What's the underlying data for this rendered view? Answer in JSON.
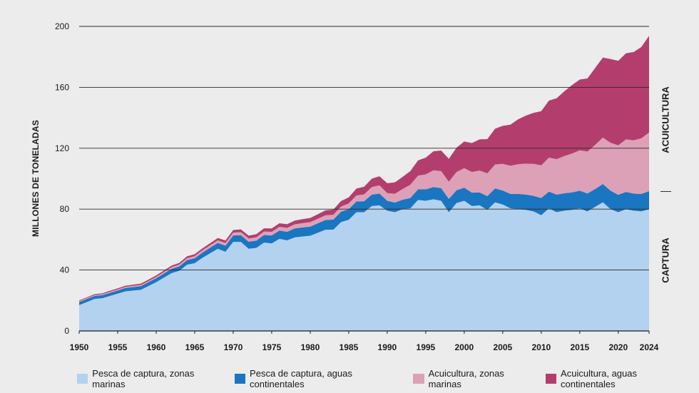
{
  "chart_data": {
    "type": "area",
    "stacked": true,
    "ylabel": "MILLONES DE TONELADAS",
    "ylim": [
      0,
      200
    ],
    "yticks": [
      0,
      40,
      80,
      120,
      160,
      200
    ],
    "xlim": [
      1950,
      2024
    ],
    "xticks": [
      1950,
      1955,
      1960,
      1965,
      1970,
      1975,
      1980,
      1985,
      1990,
      1995,
      2000,
      2005,
      2010,
      2015,
      2020,
      2024
    ],
    "grid": "horizontal",
    "legend_position": "bottom",
    "side_labels": {
      "upper": "ACUICULTURA",
      "lower": "CAPTURA"
    },
    "x": [
      1950,
      1951,
      1952,
      1953,
      1954,
      1955,
      1956,
      1957,
      1958,
      1959,
      1960,
      1961,
      1962,
      1963,
      1964,
      1965,
      1966,
      1967,
      1968,
      1969,
      1970,
      1971,
      1972,
      1973,
      1974,
      1975,
      1976,
      1977,
      1978,
      1979,
      1980,
      1981,
      1982,
      1983,
      1984,
      1985,
      1986,
      1987,
      1988,
      1989,
      1990,
      1991,
      1992,
      1993,
      1994,
      1995,
      1996,
      1997,
      1998,
      1999,
      2000,
      2001,
      2002,
      2003,
      2004,
      2005,
      2006,
      2007,
      2008,
      2009,
      2010,
      2011,
      2012,
      2013,
      2014,
      2015,
      2016,
      2017,
      2018,
      2019,
      2020,
      2021,
      2022,
      2023,
      2024
    ],
    "series": [
      {
        "name": "Pesca de captura, zonas marinas",
        "color": "#b3d2ef",
        "values": [
          17,
          19,
          21,
          21.5,
          23,
          24.5,
          26,
          26.5,
          27,
          29.5,
          32,
          35,
          38,
          39.5,
          43.5,
          44.5,
          48,
          51,
          54,
          52,
          58.5,
          58.5,
          54,
          54.5,
          58,
          57.5,
          60.5,
          59.5,
          61.5,
          62,
          62.5,
          64.5,
          66.5,
          66.5,
          71.5,
          73,
          78,
          78,
          82,
          82.5,
          79,
          78,
          80,
          80.5,
          86,
          85.5,
          86.5,
          85.5,
          78,
          84,
          85.5,
          82,
          82.5,
          79.5,
          84.5,
          83,
          80.5,
          80,
          79.5,
          78.5,
          76,
          80.5,
          78,
          79,
          79.5,
          80.5,
          78.5,
          81.5,
          84.5,
          80,
          78,
          80,
          79,
          78.5,
          80
        ]
      },
      {
        "name": "Pesca de captura, aguas continentales",
        "color": "#1a76c1",
        "values": [
          2,
          2,
          2,
          2,
          2,
          2.1,
          2.2,
          2.3,
          2.4,
          2.5,
          2.6,
          2.7,
          2.8,
          2.9,
          3,
          3.2,
          3.4,
          3.6,
          3.8,
          4,
          4.2,
          4.4,
          4.6,
          4.8,
          5,
          5.2,
          5.4,
          5.6,
          5.8,
          6,
          6,
          6.2,
          6.4,
          6.6,
          6.8,
          7,
          7,
          7.2,
          7.5,
          7.7,
          6.5,
          6.3,
          6.2,
          6.8,
          7,
          7.5,
          8,
          8.3,
          8.7,
          8.4,
          8.6,
          8.8,
          8.5,
          9,
          9.1,
          9.2,
          9.5,
          10,
          10.1,
          10.2,
          11.3,
          11,
          11.5,
          11.4,
          11.5,
          11.6,
          11.8,
          11.7,
          12,
          12.1,
          11.4,
          11.3,
          11.2,
          11.5,
          11.8
        ]
      },
      {
        "name": "Acuicultura, zonas marinas",
        "color": "#dca1b6",
        "values": [
          0.6,
          0.6,
          0.6,
          0.6,
          0.7,
          0.7,
          0.7,
          0.8,
          0.8,
          0.8,
          0.9,
          1,
          1.1,
          1.2,
          1.3,
          1.4,
          1.5,
          1.6,
          1.7,
          1.8,
          1.9,
          2,
          2.1,
          2.2,
          2.3,
          2.4,
          2.5,
          2.6,
          2.7,
          2.8,
          2.9,
          3,
          3.1,
          3.2,
          3.4,
          3.7,
          4,
          4.5,
          5,
          5.4,
          5,
          5.8,
          7,
          8.7,
          9,
          9.8,
          11,
          11.2,
          11.3,
          12,
          12.8,
          13.6,
          14.3,
          15,
          15.7,
          17.5,
          18.5,
          19.5,
          20.3,
          21,
          21.5,
          22.3,
          23.3,
          24.5,
          25.5,
          26.5,
          27.5,
          29,
          30.5,
          31.5,
          32.5,
          34.5,
          35,
          36.5,
          38.5
        ]
      },
      {
        "name": "Acuicultura, aguas continentales",
        "color": "#b33e6e",
        "values": [
          0.5,
          0.5,
          0.6,
          0.6,
          0.7,
          0.7,
          0.8,
          0.8,
          0.9,
          0.9,
          1,
          1,
          1,
          1.1,
          1.2,
          1.3,
          1.3,
          1.4,
          1.5,
          1.6,
          1.7,
          1.8,
          1.9,
          2,
          2.1,
          2.2,
          2.3,
          2.4,
          2.5,
          2.6,
          2.8,
          3,
          3.2,
          3.4,
          3.6,
          4,
          4.5,
          5,
          5.5,
          6,
          6.5,
          7.5,
          8,
          9,
          10,
          11,
          12.5,
          13.5,
          15,
          16,
          17.5,
          19,
          20.5,
          22.5,
          23.5,
          25,
          27,
          29.5,
          31.5,
          33.5,
          35.5,
          37.5,
          40,
          42.5,
          45,
          46.5,
          48,
          50.5,
          52.5,
          55,
          55.5,
          56.5,
          58,
          60,
          63.5
        ]
      }
    ]
  }
}
